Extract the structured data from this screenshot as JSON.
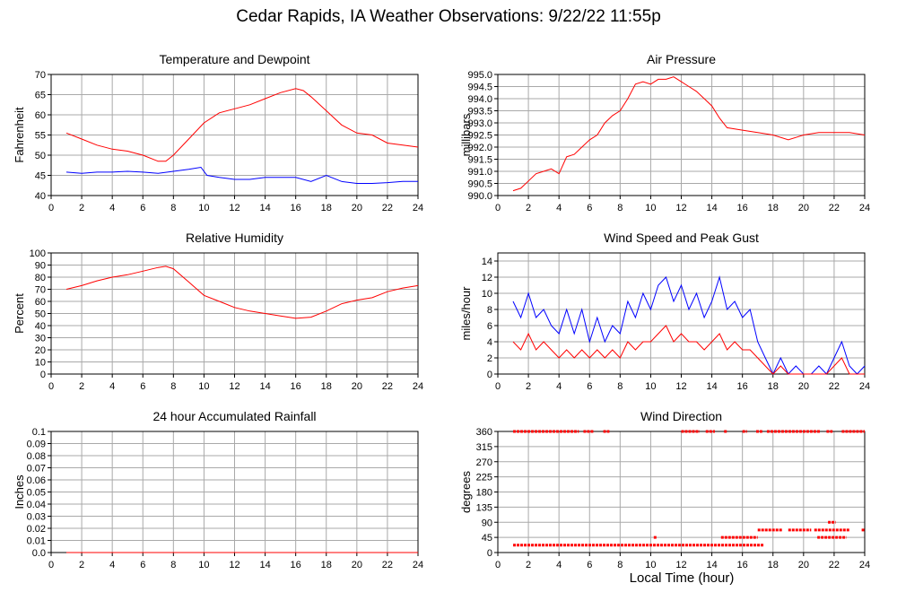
{
  "title": "Cedar Rapids, IA Weather Observations: 9/22/22 11:55p",
  "x_axis_label": "Local Time (hour)",
  "colors": {
    "red": "#ff0000",
    "blue": "#0000ff",
    "grid": "#a9a9a9"
  },
  "chart_data": [
    {
      "id": "temp",
      "type": "line",
      "title": "Temperature and Dewpoint",
      "ylabel": "Fahrenheit",
      "xlim": [
        0,
        24
      ],
      "xticks": [
        0,
        2,
        4,
        6,
        8,
        10,
        12,
        14,
        16,
        18,
        20,
        22,
        24
      ],
      "ylim": [
        40,
        70
      ],
      "yticks": [
        40,
        45,
        50,
        55,
        60,
        65,
        70
      ],
      "grid": true,
      "series": [
        {
          "color": "#ff0000",
          "x": [
            1,
            2,
            3,
            4,
            5,
            6,
            7,
            7.5,
            8,
            9,
            10,
            11,
            12,
            13,
            14,
            15,
            16,
            16.5,
            17,
            18,
            19,
            20,
            21,
            22,
            23,
            24
          ],
          "y": [
            55.5,
            54,
            52.5,
            51.5,
            51,
            50,
            48.5,
            48.5,
            50,
            54,
            58,
            60.5,
            61.5,
            62.5,
            64,
            65.5,
            66.5,
            66,
            64.5,
            61,
            57.5,
            55.5,
            55,
            53,
            52.5,
            52
          ]
        },
        {
          "color": "#0000ff",
          "x": [
            1,
            2,
            3,
            4,
            5,
            6,
            7,
            8,
            9,
            9.8,
            10.2,
            11,
            12,
            13,
            14,
            15,
            16,
            17,
            18,
            19,
            20,
            21,
            22,
            23,
            24
          ],
          "y": [
            45.8,
            45.5,
            45.8,
            45.8,
            46,
            45.8,
            45.5,
            46,
            46.5,
            47,
            45,
            44.5,
            44,
            44,
            44.5,
            44.5,
            44.5,
            43.5,
            45,
            43.5,
            43,
            43,
            43.2,
            43.5,
            43.5
          ]
        }
      ]
    },
    {
      "id": "pres",
      "type": "line",
      "title": "Air Pressure",
      "ylabel": "millibars",
      "xlim": [
        0,
        24
      ],
      "xticks": [
        0,
        2,
        4,
        6,
        8,
        10,
        12,
        14,
        16,
        18,
        20,
        22,
        24
      ],
      "ylim": [
        990,
        995
      ],
      "yticks": [
        990.0,
        990.5,
        991.0,
        991.5,
        992.0,
        992.5,
        993.0,
        993.5,
        994.0,
        994.5,
        995.0
      ],
      "ytick_labels": [
        "990.0",
        "990.5",
        "991.0",
        "991.5",
        "992.0",
        "992.5",
        "993.0",
        "993.5",
        "994.0",
        "994.5",
        "995.0"
      ],
      "grid": true,
      "series": [
        {
          "color": "#ff0000",
          "x": [
            1,
            1.5,
            2,
            2.5,
            3,
            3.5,
            4,
            4.5,
            5,
            5.5,
            6,
            6.5,
            7,
            7.5,
            8,
            8.5,
            9,
            9.5,
            10,
            10.5,
            11,
            11.5,
            12,
            12.5,
            13,
            13.5,
            14,
            14.5,
            15,
            16,
            17,
            18,
            19,
            20,
            21,
            22,
            23,
            24
          ],
          "y": [
            990.2,
            990.3,
            990.6,
            990.9,
            991.0,
            991.1,
            990.9,
            991.6,
            991.7,
            992.0,
            992.3,
            992.5,
            993.0,
            993.3,
            993.5,
            994.0,
            994.6,
            994.7,
            994.6,
            994.8,
            994.8,
            994.9,
            994.7,
            994.5,
            994.3,
            994.0,
            993.7,
            993.2,
            992.8,
            992.7,
            992.6,
            992.5,
            992.3,
            992.5,
            992.6,
            992.6,
            992.6,
            992.5
          ]
        }
      ]
    },
    {
      "id": "rh",
      "type": "line",
      "title": "Relative Humidity",
      "ylabel": "Percent",
      "xlim": [
        0,
        24
      ],
      "xticks": [
        0,
        2,
        4,
        6,
        8,
        10,
        12,
        14,
        16,
        18,
        20,
        22,
        24
      ],
      "ylim": [
        0,
        100
      ],
      "yticks": [
        0,
        10,
        20,
        30,
        40,
        50,
        60,
        70,
        80,
        90,
        100
      ],
      "grid": true,
      "series": [
        {
          "color": "#ff0000",
          "x": [
            1,
            2,
            3,
            4,
            5,
            6,
            7,
            7.5,
            8,
            9,
            10,
            11,
            12,
            13,
            14,
            15,
            16,
            17,
            18,
            19,
            20,
            21,
            22,
            23,
            24
          ],
          "y": [
            70,
            73,
            77,
            80,
            82,
            85,
            88,
            89,
            87,
            76,
            65,
            60,
            55,
            52,
            50,
            48,
            46,
            47,
            52,
            58,
            61,
            63,
            68,
            71,
            73
          ]
        }
      ]
    },
    {
      "id": "wind",
      "type": "line",
      "title": "Wind Speed and Peak Gust",
      "ylabel": "miles/hour",
      "xlim": [
        0,
        24
      ],
      "xticks": [
        0,
        2,
        4,
        6,
        8,
        10,
        12,
        14,
        16,
        18,
        20,
        22,
        24
      ],
      "ylim": [
        0,
        15
      ],
      "yticks": [
        0,
        2,
        4,
        6,
        8,
        10,
        12,
        14
      ],
      "grid": true,
      "series": [
        {
          "color": "#0000ff",
          "x": [
            1,
            1.5,
            2,
            2.5,
            3,
            3.5,
            4,
            4.5,
            5,
            5.5,
            6,
            6.5,
            7,
            7.5,
            8,
            8.5,
            9,
            9.5,
            10,
            10.5,
            11,
            11.5,
            12,
            12.5,
            13,
            13.5,
            14,
            14.5,
            15,
            15.5,
            16,
            16.5,
            17,
            17.5,
            18,
            18.5,
            19,
            19.5,
            20,
            20.5,
            21,
            21.5,
            22,
            22.5,
            23,
            23.5,
            24
          ],
          "y": [
            9,
            7,
            10,
            7,
            8,
            6,
            5,
            8,
            5,
            8,
            4,
            7,
            4,
            6,
            5,
            9,
            7,
            10,
            8,
            11,
            12,
            9,
            11,
            8,
            10,
            7,
            9,
            12,
            8,
            9,
            7,
            8,
            4,
            2,
            0,
            2,
            0,
            1,
            0,
            0,
            1,
            0,
            2,
            4,
            1,
            0,
            1
          ]
        },
        {
          "color": "#ff0000",
          "x": [
            1,
            1.5,
            2,
            2.5,
            3,
            3.5,
            4,
            4.5,
            5,
            5.5,
            6,
            6.5,
            7,
            7.5,
            8,
            8.5,
            9,
            9.5,
            10,
            10.5,
            11,
            11.5,
            12,
            12.5,
            13,
            13.5,
            14,
            14.5,
            15,
            15.5,
            16,
            16.5,
            17,
            17.5,
            18,
            18.5,
            19,
            19.5,
            20,
            20.5,
            21,
            21.5,
            22,
            22.5,
            23,
            23.5,
            24
          ],
          "y": [
            4,
            3,
            5,
            3,
            4,
            3,
            2,
            3,
            2,
            3,
            2,
            3,
            2,
            3,
            2,
            4,
            3,
            4,
            4,
            5,
            6,
            4,
            5,
            4,
            4,
            3,
            4,
            5,
            3,
            4,
            3,
            3,
            2,
            1,
            0,
            1,
            0,
            0,
            0,
            0,
            0,
            0,
            1,
            2,
            0,
            0,
            0
          ]
        }
      ]
    },
    {
      "id": "rain",
      "type": "line",
      "title": "24 hour Accumulated Rainfall",
      "ylabel": "Inches",
      "xlim": [
        0,
        24
      ],
      "xticks": [
        0,
        2,
        4,
        6,
        8,
        10,
        12,
        14,
        16,
        18,
        20,
        22,
        24
      ],
      "ylim": [
        0,
        0.1
      ],
      "yticks": [
        0,
        0.01,
        0.02,
        0.03,
        0.04,
        0.05,
        0.06,
        0.07,
        0.08,
        0.09,
        0.1
      ],
      "ytick_labels": [
        "0.0",
        "0.01",
        "0.02",
        "0.03",
        "0.04",
        "0.05",
        "0.06",
        "0.07",
        "0.08",
        "0.09",
        "0.1"
      ],
      "grid": true,
      "series": [
        {
          "color": "#ff0000",
          "x": [
            1,
            24
          ],
          "y": [
            0,
            0
          ]
        }
      ]
    },
    {
      "id": "wdir",
      "type": "scatter",
      "title": "Wind Direction",
      "ylabel": "degrees",
      "xlim": [
        0,
        24
      ],
      "xticks": [
        0,
        2,
        4,
        6,
        8,
        10,
        12,
        14,
        16,
        18,
        20,
        22,
        24
      ],
      "ylim": [
        0,
        360
      ],
      "yticks": [
        0,
        45,
        90,
        135,
        180,
        225,
        270,
        315,
        360
      ],
      "grid": true,
      "series": [
        {
          "color": "#ff0000",
          "segments": [
            {
              "x": [
                1.0,
                5.3
              ],
              "y": 360
            },
            {
              "x": [
                5.6,
                6.3
              ],
              "y": 360
            },
            {
              "x": [
                6.9,
                7.3
              ],
              "y": 360
            },
            {
              "x": [
                12.0,
                13.2
              ],
              "y": 360
            },
            {
              "x": [
                13.6,
                14.2
              ],
              "y": 360
            },
            {
              "x": [
                14.8,
                15.0
              ],
              "y": 360
            },
            {
              "x": [
                16.0,
                16.3
              ],
              "y": 360
            },
            {
              "x": [
                16.9,
                17.3
              ],
              "y": 360
            },
            {
              "x": [
                17.6,
                21.1
              ],
              "y": 360
            },
            {
              "x": [
                21.5,
                21.9
              ],
              "y": 360
            },
            {
              "x": [
                22.5,
                24.0
              ],
              "y": 360
            },
            {
              "x": [
                1.0,
                17.4
              ],
              "y": 22
            },
            {
              "x": [
                10.2,
                10.4
              ],
              "y": 45
            },
            {
              "x": [
                14.6,
                17.0
              ],
              "y": 45
            },
            {
              "x": [
                20.9,
                22.8
              ],
              "y": 45
            },
            {
              "x": [
                17.0,
                18.6
              ],
              "y": 67
            },
            {
              "x": [
                19.0,
                20.5
              ],
              "y": 67
            },
            {
              "x": [
                20.7,
                23.0
              ],
              "y": 67
            },
            {
              "x": [
                23.8,
                24.0
              ],
              "y": 67
            },
            {
              "x": [
                21.6,
                22.1
              ],
              "y": 90
            }
          ]
        }
      ]
    }
  ]
}
